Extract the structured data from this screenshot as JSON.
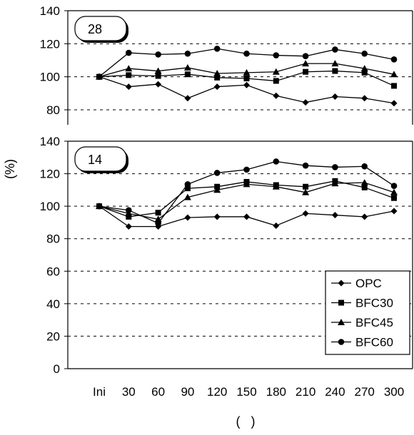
{
  "chart_data": {
    "type": "line",
    "ylabel": "(%)",
    "xlabel": "(   )",
    "categories": [
      "Ini",
      "30",
      "60",
      "90",
      "120",
      "150",
      "180",
      "210",
      "240",
      "270",
      "300"
    ],
    "legend": {
      "placement": "bottom-right of lower panel",
      "entries": [
        {
          "name": "OPC",
          "marker": "diamond"
        },
        {
          "name": "BFC30",
          "marker": "square"
        },
        {
          "name": "BFC45",
          "marker": "triangle"
        },
        {
          "name": "BFC60",
          "marker": "circle"
        }
      ]
    },
    "grid": "dashed horizontal",
    "panels": [
      {
        "id": "upper",
        "badge": "28",
        "ylim": [
          70,
          140
        ],
        "yticks": [
          80,
          100,
          120,
          140
        ],
        "series": [
          {
            "name": "OPC",
            "marker": "diamond",
            "values": [
              100,
              94,
              95.5,
              87,
              94,
              95,
              88.5,
              84.5,
              88,
              87,
              84
            ]
          },
          {
            "name": "BFC30",
            "marker": "square",
            "values": [
              100,
              101,
              100.5,
              101.5,
              99.5,
              99,
              97.5,
              103,
              103.5,
              102.5,
              94.5
            ]
          },
          {
            "name": "BFC45",
            "marker": "triangle",
            "values": [
              100,
              105,
              103.5,
              105.5,
              102,
              102.5,
              103,
              108,
              108,
              105,
              101.5
            ]
          },
          {
            "name": "BFC60",
            "marker": "circle",
            "values": [
              100,
              114.5,
              113.5,
              114,
              117,
              114,
              113,
              112.5,
              116.5,
              114,
              110.5
            ]
          }
        ]
      },
      {
        "id": "lower",
        "badge": "14",
        "ylim": [
          0,
          140
        ],
        "yticks": [
          0,
          20,
          40,
          60,
          80,
          100,
          120,
          140
        ],
        "series": [
          {
            "name": "OPC",
            "marker": "diamond",
            "values": [
              100,
              87.5,
              87.5,
              93,
              93.5,
              93.5,
              88,
              95.5,
              94.5,
              93.5,
              97
            ]
          },
          {
            "name": "BFC30",
            "marker": "square",
            "values": [
              100,
              93.5,
              96,
              111,
              112,
              115,
              113,
              112,
              115.5,
              111.5,
              105
            ]
          },
          {
            "name": "BFC45",
            "marker": "triangle",
            "values": [
              100,
              95.5,
              92,
              105.5,
              110,
              113.5,
              112,
              108.5,
              114,
              114.5,
              108.5
            ]
          },
          {
            "name": "BFC60",
            "marker": "circle",
            "values": [
              100,
              97.5,
              89.5,
              113.5,
              120.5,
              122.5,
              127.5,
              125,
              124,
              124.5,
              112.5
            ]
          }
        ]
      }
    ]
  }
}
